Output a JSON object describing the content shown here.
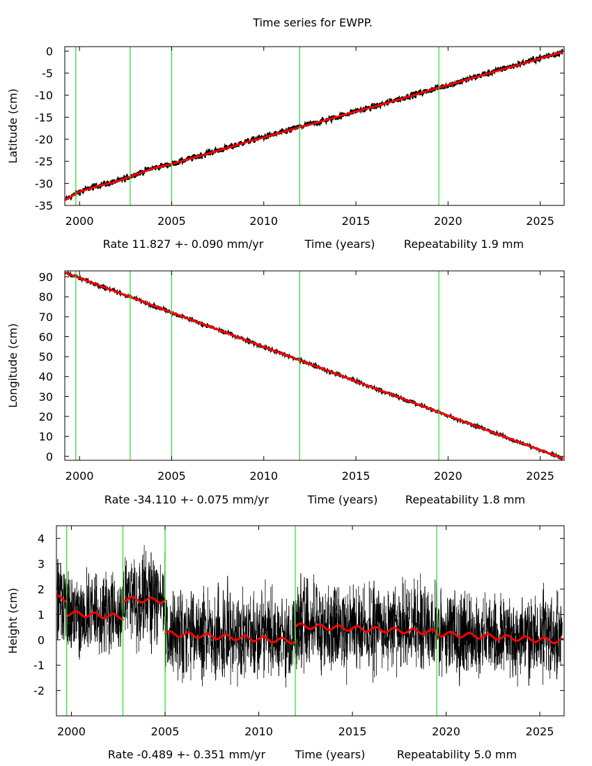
{
  "title": "Time series for EWPP.",
  "colors": {
    "data": "#000000",
    "model": "#ff0000",
    "breaks": "#22dd22"
  },
  "chart_data": [
    {
      "type": "line",
      "name": "latitude",
      "ylabel": "Latitude (cm)",
      "xlim": [
        1999.2,
        2026.3
      ],
      "ylim": [
        -35,
        1
      ],
      "xticks": [
        2000,
        2005,
        2010,
        2015,
        2020,
        2025
      ],
      "yticks": [
        0,
        -5,
        -10,
        -15,
        -20,
        -25,
        -30,
        -35
      ],
      "caption": {
        "rate": "Rate 11.827 +- 0.090 mm/yr",
        "xlabel": "Time (years)",
        "repeatability": "Repeatability 1.9 mm"
      },
      "breaks": [
        1999.8,
        2002.75,
        2005.0,
        2011.95,
        2019.5
      ],
      "series": [
        {
          "name": "observations",
          "x": [
            1999.25,
            2000,
            2001,
            2002,
            2003,
            2004,
            2005,
            2006,
            2007,
            2008,
            2009,
            2010,
            2011,
            2012,
            2013,
            2014,
            2015,
            2016,
            2017,
            2018,
            2019,
            2020,
            2021,
            2022,
            2023,
            2024,
            2025,
            2026.2
          ],
          "values": [
            -33.6,
            -31.9,
            -30.5,
            -29.6,
            -28.0,
            -26.5,
            -25.6,
            -24.4,
            -23.1,
            -22.0,
            -20.6,
            -19.5,
            -18.4,
            -17.1,
            -16.1,
            -14.9,
            -13.6,
            -12.6,
            -11.3,
            -10.1,
            -8.9,
            -7.7,
            -6.5,
            -5.2,
            -4.0,
            -2.8,
            -1.6,
            -0.2
          ],
          "scatter": 0.35
        },
        {
          "name": "model",
          "x": [
            1999.25,
            2000,
            2001,
            2002,
            2003,
            2004,
            2005,
            2006,
            2007,
            2008,
            2009,
            2010,
            2011,
            2012,
            2013,
            2014,
            2015,
            2016,
            2017,
            2018,
            2019,
            2020,
            2021,
            2022,
            2023,
            2024,
            2025,
            2026.2
          ],
          "values": [
            -33.7,
            -31.9,
            -30.6,
            -29.6,
            -28.1,
            -26.6,
            -25.6,
            -24.4,
            -23.2,
            -22.0,
            -20.7,
            -19.6,
            -18.4,
            -17.2,
            -16.1,
            -14.9,
            -13.7,
            -12.6,
            -11.4,
            -10.2,
            -8.9,
            -7.7,
            -6.5,
            -5.3,
            -4.1,
            -2.9,
            -1.7,
            -0.2
          ]
        }
      ]
    },
    {
      "type": "line",
      "name": "longitude",
      "ylabel": "Longitude (cm)",
      "xlim": [
        1999.2,
        2026.3
      ],
      "ylim": [
        -2,
        93
      ],
      "xticks": [
        2000,
        2005,
        2010,
        2015,
        2020,
        2025
      ],
      "yticks": [
        90,
        80,
        70,
        60,
        50,
        40,
        30,
        20,
        10,
        0
      ],
      "caption": {
        "rate": "Rate -34.110 +- 0.075 mm/yr",
        "xlabel": "Time (years)",
        "repeatability": "Repeatability 1.8 mm"
      },
      "breaks": [
        1999.8,
        2002.75,
        2005.0,
        2011.95,
        2019.5
      ],
      "series": [
        {
          "name": "observations",
          "x": [
            1999.25,
            2026.2
          ],
          "values": [
            92.0,
            -1.0
          ],
          "scatter": 0.4
        },
        {
          "name": "model",
          "x": [
            1999.25,
            2026.2
          ],
          "values": [
            92.0,
            -1.0
          ]
        }
      ]
    },
    {
      "type": "line",
      "name": "height",
      "ylabel": "Height (cm)",
      "xlim": [
        1999.2,
        2026.3
      ],
      "ylim": [
        -3,
        4.5
      ],
      "xticks": [
        2000,
        2005,
        2010,
        2015,
        2020,
        2025
      ],
      "yticks": [
        4,
        3,
        2,
        1,
        0,
        -1,
        -2
      ],
      "caption": {
        "rate": "Rate -0.489 +- 0.351 mm/yr",
        "xlabel": "Time (years)",
        "repeatability": "Repeatability 5.0 mm"
      },
      "breaks": [
        1999.75,
        2002.75,
        2005.0,
        2011.95,
        2019.5
      ],
      "series": [
        {
          "name": "observations",
          "x": [
            1999.25,
            1999.75,
            2002.75,
            2005.0,
            2011.95,
            2019.5,
            2026.2
          ],
          "values": [
            1.6,
            1.0,
            1.6,
            0.2,
            0.5,
            0.2,
            0.0
          ],
          "scatter": 0.75
        },
        {
          "name": "model",
          "segments": [
            {
              "x": [
                1999.25,
                1999.75
              ],
              "start": 1.65,
              "end": 1.6
            },
            {
              "x": [
                1999.75,
                2002.75
              ],
              "start": 1.05,
              "end": 0.9
            },
            {
              "x": [
                2002.75,
                2005.0
              ],
              "start": 1.6,
              "end": 1.55
            },
            {
              "x": [
                2005.0,
                2011.95
              ],
              "start": 0.25,
              "end": -0.05
            },
            {
              "x": [
                2011.95,
                2019.5
              ],
              "start": 0.55,
              "end": 0.3
            },
            {
              "x": [
                2019.5,
                2026.2
              ],
              "start": 0.25,
              "end": -0.05
            }
          ],
          "amplitude": 0.1
        }
      ]
    }
  ]
}
